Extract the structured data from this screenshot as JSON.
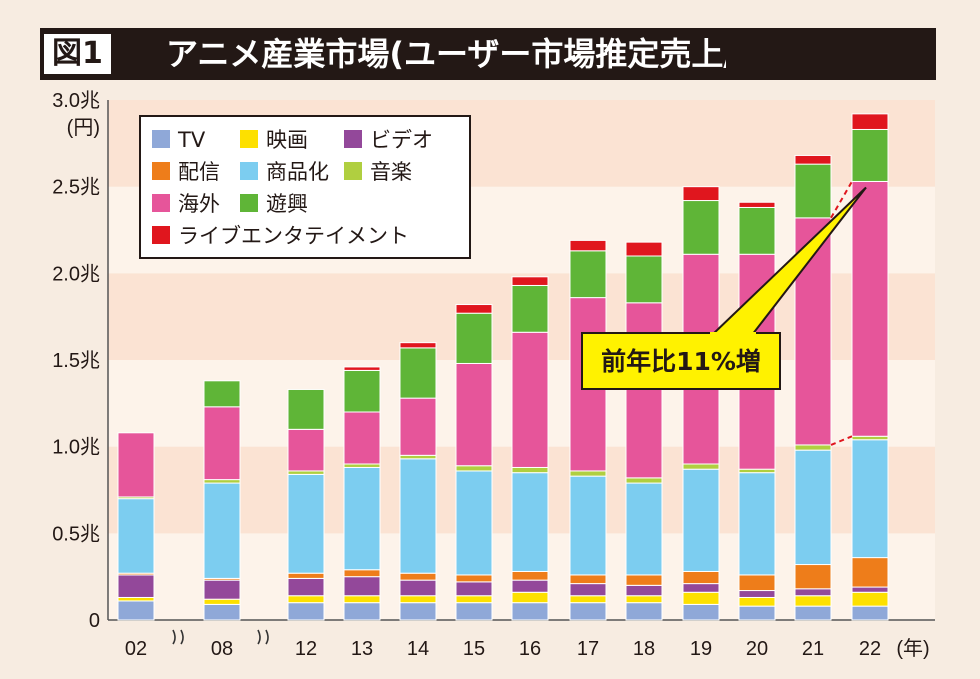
{
  "header": {
    "figure_label": "図1",
    "title": "アニメ産業市場(ユーザー市場推定売上/広義の"
  },
  "chart_data": {
    "type": "bar",
    "stacked": true,
    "title": "アニメ産業市場(ユーザー市場推定売上/広義の",
    "ylabel": "(円)",
    "xlabel": "(年)",
    "ylim": [
      0,
      3.0
    ],
    "y_ticks": [
      "0",
      "0.5兆",
      "1.0兆",
      "1.5兆",
      "2.0兆",
      "2.5兆",
      "3.0兆"
    ],
    "categories": [
      "02",
      "08",
      "12",
      "13",
      "14",
      "15",
      "16",
      "17",
      "18",
      "19",
      "20",
      "21",
      "22"
    ],
    "axis_breaks": [
      "02|08",
      "08|12"
    ],
    "series": [
      {
        "name": "TV",
        "color": "#8fa8d8",
        "values": [
          0.11,
          0.09,
          0.1,
          0.1,
          0.1,
          0.1,
          0.1,
          0.1,
          0.1,
          0.09,
          0.08,
          0.08,
          0.08
        ]
      },
      {
        "name": "映画",
        "color": "#fde000",
        "values": [
          0.02,
          0.03,
          0.04,
          0.04,
          0.04,
          0.04,
          0.06,
          0.04,
          0.04,
          0.07,
          0.05,
          0.06,
          0.08
        ]
      },
      {
        "name": "ビデオ",
        "color": "#93489a",
        "values": [
          0.13,
          0.11,
          0.1,
          0.11,
          0.09,
          0.08,
          0.07,
          0.07,
          0.06,
          0.05,
          0.04,
          0.04,
          0.03
        ]
      },
      {
        "name": "配信",
        "color": "#ee7d1a",
        "values": [
          0.01,
          0.01,
          0.03,
          0.04,
          0.04,
          0.04,
          0.05,
          0.05,
          0.06,
          0.07,
          0.09,
          0.14,
          0.17
        ]
      },
      {
        "name": "商品化",
        "color": "#7ccdf0",
        "values": [
          0.43,
          0.55,
          0.57,
          0.59,
          0.66,
          0.6,
          0.57,
          0.57,
          0.53,
          0.59,
          0.59,
          0.66,
          0.68
        ]
      },
      {
        "name": "音楽",
        "color": "#b0cf40",
        "values": [
          0.01,
          0.02,
          0.02,
          0.02,
          0.02,
          0.03,
          0.03,
          0.03,
          0.03,
          0.03,
          0.02,
          0.03,
          0.02
        ]
      },
      {
        "name": "海外",
        "color": "#e6559a",
        "values": [
          0.37,
          0.42,
          0.24,
          0.3,
          0.33,
          0.59,
          0.78,
          1.0,
          1.01,
          1.21,
          1.24,
          1.31,
          1.47
        ]
      },
      {
        "name": "遊興",
        "color": "#5fb537",
        "values": [
          0.0,
          0.15,
          0.23,
          0.24,
          0.29,
          0.29,
          0.27,
          0.27,
          0.27,
          0.31,
          0.27,
          0.31,
          0.3
        ]
      },
      {
        "name": "ライブエンタテイメント",
        "color": "#e0161e",
        "values": [
          0.0,
          0.0,
          0.0,
          0.02,
          0.03,
          0.05,
          0.05,
          0.06,
          0.08,
          0.08,
          0.03,
          0.05,
          0.09
        ]
      }
    ],
    "annotation": "前年比11%増",
    "legend_position": "top-left"
  }
}
